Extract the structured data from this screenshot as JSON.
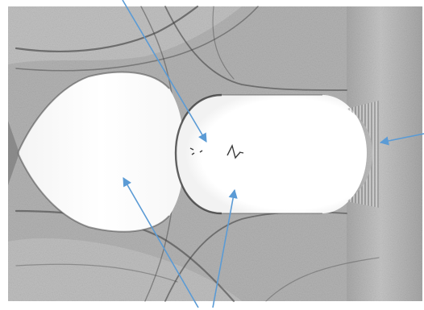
{
  "image": {
    "kind": "grayscale shadowgraph of flow pattern with annotation arrows",
    "background_color": "#ffffff",
    "field_color": "#aaaaaa",
    "arrow_color": "#5b9bd5"
  },
  "annotation_arrows": [
    {
      "name": "arrow-top-to-center-region"
    },
    {
      "name": "arrow-right-to-fringes"
    },
    {
      "name": "arrow-bottom-to-left-region"
    },
    {
      "name": "arrow-bottom-to-right-region"
    }
  ]
}
